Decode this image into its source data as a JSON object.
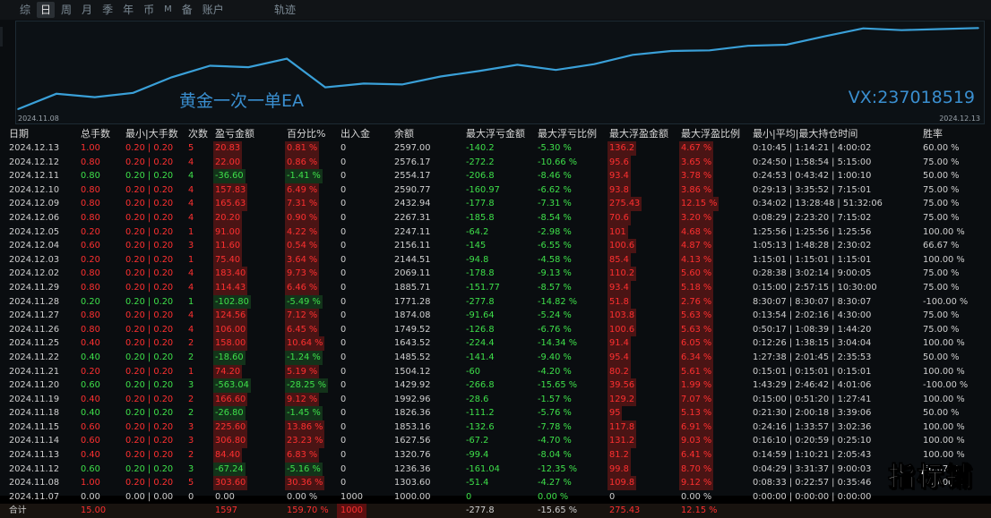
{
  "topbar": {
    "tabs": [
      "综",
      "日",
      "周",
      "月",
      "季",
      "年",
      "币",
      "M",
      "备",
      "账户"
    ],
    "active": "日",
    "track": "轨迹"
  },
  "chart": {
    "title": "黄金一次一单EA",
    "vx": "VX:237018519",
    "date_start": "2024.11.08",
    "date_end": "2024.12.13",
    "line_color": "#3aa0d8"
  },
  "chart_data": {
    "type": "line",
    "x": [
      "2024.11.08",
      "2024.11.12",
      "2024.11.13",
      "2024.11.14",
      "2024.11.15",
      "2024.11.18",
      "2024.11.19",
      "2024.11.20",
      "2024.11.21",
      "2024.11.22",
      "2024.11.25",
      "2024.11.26",
      "2024.11.27",
      "2024.11.28",
      "2024.11.29",
      "2024.12.02",
      "2024.12.03",
      "2024.12.04",
      "2024.12.05",
      "2024.12.06",
      "2024.12.09",
      "2024.12.10",
      "2024.12.11",
      "2024.12.12",
      "2024.12.13"
    ],
    "values": [
      1303.6,
      1236.36,
      1320.76,
      1627.56,
      1853.16,
      1826.36,
      1992.96,
      1429.92,
      1504.12,
      1485.52,
      1643.52,
      1749.52,
      1874.08,
      1771.28,
      1885.71,
      2069.11,
      2144.51,
      2156.11,
      2247.11,
      2267.31,
      2432.94,
      2590.77,
      2554.17,
      2576.17,
      2597.0
    ]
  },
  "table": {
    "headers": [
      "日期",
      "总手数",
      "最小|大手数",
      "次数",
      "盈亏金额",
      "百分比%",
      "出入金",
      "余额",
      "最大浮亏金额",
      "最大浮亏比例",
      "最大浮盈金额",
      "最大浮盈比例",
      "最小|平均|最大持仓时间",
      "胜率"
    ],
    "rows": [
      [
        "2024.12.13",
        "1.00",
        "0.20 | 0.20",
        "5",
        "20.83",
        "0.81 %",
        "0",
        "2597.00",
        "-140.2",
        "-5.30 %",
        "136.2",
        "4.67 %",
        "0:10:45 | 1:14:21 | 4:00:02",
        "60.00 %"
      ],
      [
        "2024.12.12",
        "0.80",
        "0.20 | 0.20",
        "4",
        "22.00",
        "0.86 %",
        "0",
        "2576.17",
        "-272.2",
        "-10.66 %",
        "95.6",
        "3.65 %",
        "0:24:50 | 1:58:54 | 5:15:00",
        "75.00 %"
      ],
      [
        "2024.12.11",
        "0.80",
        "0.20 | 0.20",
        "4",
        "-36.60",
        "-1.41 %",
        "0",
        "2554.17",
        "-206.8",
        "-8.46 %",
        "93.4",
        "3.78 %",
        "0:24:53 | 0:43:42 | 1:00:10",
        "50.00 %"
      ],
      [
        "2024.12.10",
        "0.80",
        "0.20 | 0.20",
        "4",
        "157.83",
        "6.49 %",
        "0",
        "2590.77",
        "-160.97",
        "-6.62 %",
        "93.8",
        "3.86 %",
        "0:29:13 | 3:35:52 | 7:15:01",
        "75.00 %"
      ],
      [
        "2024.12.09",
        "0.80",
        "0.20 | 0.20",
        "4",
        "165.63",
        "7.31 %",
        "0",
        "2432.94",
        "-177.8",
        "-7.31 %",
        "275.43",
        "12.15 %",
        "0:34:02 | 13:28:48 | 51:32:06",
        "75.00 %"
      ],
      [
        "2024.12.06",
        "0.80",
        "0.20 | 0.20",
        "4",
        "20.20",
        "0.90 %",
        "0",
        "2267.31",
        "-185.8",
        "-8.54 %",
        "70.6",
        "3.20 %",
        "0:08:29 | 2:23:20 | 7:15:02",
        "75.00 %"
      ],
      [
        "2024.12.05",
        "0.20",
        "0.20 | 0.20",
        "1",
        "91.00",
        "4.22 %",
        "0",
        "2247.11",
        "-64.2",
        "-2.98 %",
        "101",
        "4.68 %",
        "1:25:56 | 1:25:56 | 1:25:56",
        "100.00 %"
      ],
      [
        "2024.12.04",
        "0.60",
        "0.20 | 0.20",
        "3",
        "11.60",
        "0.54 %",
        "0",
        "2156.11",
        "-145",
        "-6.55 %",
        "100.6",
        "4.87 %",
        "1:05:13 | 1:48:28 | 2:30:02",
        "66.67 %"
      ],
      [
        "2024.12.03",
        "0.20",
        "0.20 | 0.20",
        "1",
        "75.40",
        "3.64 %",
        "0",
        "2144.51",
        "-94.8",
        "-4.58 %",
        "85.4",
        "4.13 %",
        "1:15:01 | 1:15:01 | 1:15:01",
        "100.00 %"
      ],
      [
        "2024.12.02",
        "0.80",
        "0.20 | 0.20",
        "4",
        "183.40",
        "9.73 %",
        "0",
        "2069.11",
        "-178.8",
        "-9.13 %",
        "110.2",
        "5.60 %",
        "0:28:38 | 3:02:14 | 9:00:05",
        "75.00 %"
      ],
      [
        "2024.11.29",
        "0.80",
        "0.20 | 0.20",
        "4",
        "114.43",
        "6.46 %",
        "0",
        "1885.71",
        "-151.77",
        "-8.57 %",
        "93.4",
        "5.18 %",
        "0:15:00 | 2:57:15 | 10:30:00",
        "75.00 %"
      ],
      [
        "2024.11.28",
        "0.20",
        "0.20 | 0.20",
        "1",
        "-102.80",
        "-5.49 %",
        "0",
        "1771.28",
        "-277.8",
        "-14.82 %",
        "51.8",
        "2.76 %",
        "8:30:07 | 8:30:07 | 8:30:07",
        "-100.00 %"
      ],
      [
        "2024.11.27",
        "0.80",
        "0.20 | 0.20",
        "4",
        "124.56",
        "7.12 %",
        "0",
        "1874.08",
        "-91.64",
        "-5.24 %",
        "103.8",
        "5.63 %",
        "0:13:54 | 2:02:16 | 4:30:00",
        "75.00 %"
      ],
      [
        "2024.11.26",
        "0.80",
        "0.20 | 0.20",
        "4",
        "106.00",
        "6.45 %",
        "0",
        "1749.52",
        "-126.8",
        "-6.76 %",
        "100.6",
        "5.63 %",
        "0:50:17 | 1:08:39 | 1:44:20",
        "75.00 %"
      ],
      [
        "2024.11.25",
        "0.40",
        "0.20 | 0.20",
        "2",
        "158.00",
        "10.64 %",
        "0",
        "1643.52",
        "-224.4",
        "-14.34 %",
        "91.4",
        "6.05 %",
        "0:12:26 | 1:38:15 | 3:04:04",
        "100.00 %"
      ],
      [
        "2024.11.22",
        "0.40",
        "0.20 | 0.20",
        "2",
        "-18.60",
        "-1.24 %",
        "0",
        "1485.52",
        "-141.4",
        "-9.40 %",
        "95.4",
        "6.34 %",
        "1:27:38 | 2:01:45 | 2:35:53",
        "50.00 %"
      ],
      [
        "2024.11.21",
        "0.20",
        "0.20 | 0.20",
        "1",
        "74.20",
        "5.19 %",
        "0",
        "1504.12",
        "-60",
        "-4.20 %",
        "80.2",
        "5.61 %",
        "0:15:01 | 0:15:01 | 0:15:01",
        "100.00 %"
      ],
      [
        "2024.11.20",
        "0.60",
        "0.20 | 0.20",
        "3",
        "-563.04",
        "-28.25 %",
        "0",
        "1429.92",
        "-266.8",
        "-15.65 %",
        "39.56",
        "1.99 %",
        "1:43:29 | 2:46:42 | 4:01:06",
        "-100.00 %"
      ],
      [
        "2024.11.19",
        "0.40",
        "0.20 | 0.20",
        "2",
        "166.60",
        "9.12 %",
        "0",
        "1992.96",
        "-28.6",
        "-1.57 %",
        "129.2",
        "7.07 %",
        "0:15:00 | 0:51:20 | 1:27:41",
        "100.00 %"
      ],
      [
        "2024.11.18",
        "0.40",
        "0.20 | 0.20",
        "2",
        "-26.80",
        "-1.45 %",
        "0",
        "1826.36",
        "-111.2",
        "-5.76 %",
        "95",
        "5.13 %",
        "0:21:30 | 2:00:18 | 3:39:06",
        "50.00 %"
      ],
      [
        "2024.11.15",
        "0.60",
        "0.20 | 0.20",
        "3",
        "225.60",
        "13.86 %",
        "0",
        "1853.16",
        "-132.6",
        "-7.78 %",
        "117.8",
        "6.91 %",
        "0:24:16 | 1:33:57 | 3:02:36",
        "100.00 %"
      ],
      [
        "2024.11.14",
        "0.60",
        "0.20 | 0.20",
        "3",
        "306.80",
        "23.23 %",
        "0",
        "1627.56",
        "-67.2",
        "-4.70 %",
        "131.2",
        "9.03 %",
        "0:16:10 | 0:20:59 | 0:25:10",
        "100.00 %"
      ],
      [
        "2024.11.13",
        "0.40",
        "0.20 | 0.20",
        "2",
        "84.40",
        "6.83 %",
        "0",
        "1320.76",
        "-99.4",
        "-8.04 %",
        "81.2",
        "6.41 %",
        "0:14:59 | 1:10:21 | 2:05:43",
        "100.00 %"
      ],
      [
        "2024.11.12",
        "0.60",
        "0.20 | 0.20",
        "3",
        "-67.24",
        "-5.16 %",
        "0",
        "1236.36",
        "-161.04",
        "-12.35 %",
        "99.8",
        "8.70 %",
        "0:04:29 | 3:31:37 | 9:00:03",
        "66.67 %"
      ],
      [
        "2024.11.08",
        "1.00",
        "0.20 | 0.20",
        "5",
        "303.60",
        "30.36 %",
        "0",
        "1303.60",
        "-51.4",
        "-4.27 %",
        "109.8",
        "9.12 %",
        "0:08:33 | 0:22:57 | 0:35:46",
        "100.00 %"
      ],
      [
        "2024.11.07",
        "0.00",
        "0.00 | 0.00",
        "0",
        "0.00",
        "0.00 %",
        "1000",
        "1000.00",
        "0",
        "0.00 %",
        "0",
        "0.00 %",
        "0:00:00 | 0:00:00 | 0:00:00",
        ""
      ]
    ],
    "total": [
      "合计",
      "15.00",
      "",
      "",
      "1597",
      "159.70 %",
      "1000",
      "",
      "-277.8",
      "-15.65 %",
      "275.43",
      "12.15 %",
      "",
      ""
    ]
  },
  "watermark": "指标铺"
}
